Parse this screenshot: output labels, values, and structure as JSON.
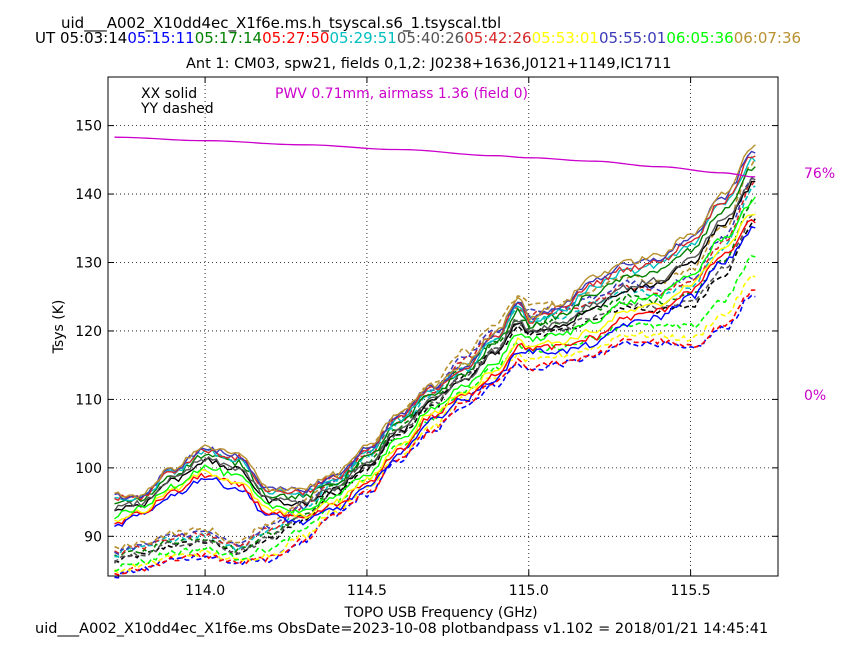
{
  "header": {
    "title": "uid___A002_X10dd4ec_X1f6e.ms.h_tsyscal.s6_1.tsyscal.tbl",
    "ut_label": "UT",
    "times": [
      {
        "text": "05:03:14",
        "color": "#000000"
      },
      {
        "text": "05:15:11",
        "color": "#0000ff"
      },
      {
        "text": "05:17:14",
        "color": "#008000"
      },
      {
        "text": "05:27:50",
        "color": "#ff0000"
      },
      {
        "text": "05:29:51",
        "color": "#00bfbf"
      },
      {
        "text": "05:40:26",
        "color": "#555555"
      },
      {
        "text": "05:42:26",
        "color": "#d62728"
      },
      {
        "text": "05:53:01",
        "color": "#ffff00"
      },
      {
        "text": "05:55:01",
        "color": "#3a3ab8"
      },
      {
        "text": "06:05:36",
        "color": "#00ff00"
      },
      {
        "text": "06:07:36",
        "color": "#b8902e"
      }
    ]
  },
  "footer": "uid___A002_X10dd4ec_X1f6e.ms  ObsDate=2023-10-08   plotbandpass v1.102 = 2018/01/21 14:45:41",
  "chart_data": {
    "type": "line",
    "title": "Ant 1: CM03,  spw21,  fields 0,1,2: J0238+1636,J0121+1149,IC1711",
    "xlabel": "TOPO USB Frequency (GHz)",
    "ylabel": "Tsys (K)",
    "xlim": [
      113.7,
      115.77
    ],
    "ylim": [
      84.2,
      157.1
    ],
    "xticks": [
      114.0,
      114.5,
      115.0,
      115.5
    ],
    "xtick_labels": [
      "114.0",
      "114.5",
      "115.0",
      "115.5"
    ],
    "yticks": [
      90,
      100,
      110,
      120,
      130,
      140,
      150
    ],
    "ytick_labels": [
      "90",
      "100",
      "110",
      "120",
      "130",
      "140",
      "150"
    ],
    "grid": true,
    "legend": {
      "solid": "XX solid",
      "dashed": "YY dashed"
    },
    "pwv_label": "PWV 0.71mm, airmass 1.36 (field 0)",
    "pwv_color": "#cc00cc",
    "right_labels": {
      "top": "76%",
      "bottom": "0%"
    },
    "transmission_curve": {
      "x": [
        113.72,
        114.0,
        114.3,
        114.6,
        114.9,
        115.0,
        115.2,
        115.4,
        115.6,
        115.7
      ],
      "y": [
        148.3,
        147.8,
        147.2,
        146.5,
        145.6,
        145.3,
        144.8,
        144.0,
        143.1,
        142.5
      ]
    },
    "frequency_grid": [
      113.7,
      113.8,
      113.9,
      114.0,
      114.1,
      114.2,
      114.3,
      114.4,
      114.5,
      114.6,
      114.7,
      114.8,
      114.9,
      114.97,
      115.0,
      115.1,
      115.2,
      115.3,
      115.4,
      115.5,
      115.6,
      115.7
    ],
    "envelopes": {
      "xx_upper": [
        96,
        96,
        100,
        103,
        102,
        97,
        97,
        99,
        103,
        108,
        112,
        115,
        120,
        125,
        122,
        124,
        128,
        130,
        131,
        134,
        140,
        147
      ],
      "xx_lower": [
        91,
        93,
        96,
        98.5,
        97,
        93,
        92,
        94,
        97,
        102,
        107,
        110,
        113,
        117,
        117,
        117,
        118,
        121,
        122,
        125,
        130,
        135
      ],
      "yy_upper": [
        88,
        89,
        90.5,
        91,
        89,
        92,
        95,
        99,
        103,
        108,
        112,
        117,
        121,
        125,
        124,
        124,
        126,
        128,
        127,
        129,
        135,
        145
      ],
      "yy_lower": [
        84,
        85,
        86.5,
        87,
        86,
        86.5,
        89,
        93,
        96,
        101,
        105,
        109,
        112,
        115,
        114,
        115,
        116,
        118,
        118,
        117,
        120,
        125
      ]
    },
    "series": [
      {
        "name": "05:03:14",
        "color": "#000000",
        "xx_frac": 0.55,
        "yy_frac": 0.55
      },
      {
        "name": "05:15:11",
        "color": "#0000ff",
        "xx_frac": 0.0,
        "yy_frac": 0.02
      },
      {
        "name": "05:17:14",
        "color": "#008000",
        "xx_frac": 0.75,
        "yy_frac": 0.7
      },
      {
        "name": "05:27:50",
        "color": "#ff0000",
        "xx_frac": 0.1,
        "yy_frac": 0.05
      },
      {
        "name": "05:29:51",
        "color": "#00bfbf",
        "xx_frac": 0.85,
        "yy_frac": 0.8
      },
      {
        "name": "05:40:26",
        "color": "#555555",
        "xx_frac": 0.6,
        "yy_frac": 0.6
      },
      {
        "name": "05:42:26",
        "color": "#d62728",
        "xx_frac": 0.9,
        "yy_frac": 0.85
      },
      {
        "name": "05:53:01",
        "color": "#ffff00",
        "xx_frac": 0.2,
        "yy_frac": 0.15
      },
      {
        "name": "05:55:01",
        "color": "#3a3ab8",
        "xx_frac": 0.95,
        "yy_frac": 0.9
      },
      {
        "name": "06:05:36",
        "color": "#00ff00",
        "xx_frac": 0.35,
        "yy_frac": 0.3
      },
      {
        "name": "06:07:36",
        "color": "#b8902e",
        "xx_frac": 1.0,
        "yy_frac": 1.0
      }
    ]
  }
}
